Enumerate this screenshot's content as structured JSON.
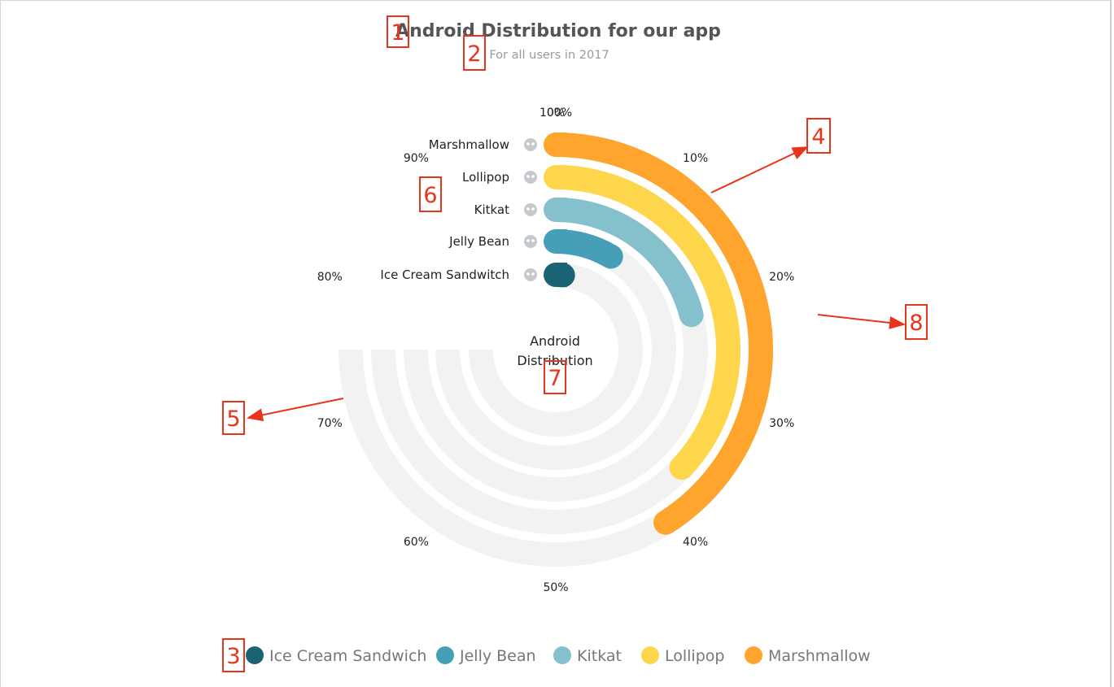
{
  "chart_data": {
    "type": "radial-bar",
    "title": "Android Distribution for our app",
    "subtitle": "For all users in 2017",
    "center_label": [
      "Android",
      "Distribution"
    ],
    "axis": {
      "range": [
        0,
        100
      ],
      "ticks": [
        "0%",
        "10%",
        "20%",
        "30%",
        "40%",
        "50%",
        "60%",
        "70%",
        "80%",
        "90%",
        "100%"
      ],
      "track_span": 75
    },
    "categories": [
      "Ice Cream Sandwitch",
      "Jelly Bean",
      "Kitkat",
      "Lollipop",
      "Marshmallow"
    ],
    "category_icons": [
      "bug-icon",
      "space-invader-icon",
      "unicorn-icon",
      "alien-icon",
      "alien-head-icon"
    ],
    "values": [
      1.5,
      8.5,
      21,
      37,
      41
    ],
    "colors": [
      "#1a6374",
      "#459fb6",
      "#84c1cc",
      "#fed64c",
      "#ffa42d"
    ],
    "track_color": "#f2f2f2",
    "legend_position": "bottom"
  },
  "legend": {
    "items": [
      {
        "label": "Ice Cream Sandwich",
        "color": "#1a6374"
      },
      {
        "label": "Jelly Bean",
        "color": "#459fb6"
      },
      {
        "label": "Kitkat",
        "color": "#84c1cc"
      },
      {
        "label": "Lollipop",
        "color": "#fed64c"
      },
      {
        "label": "Marshmallow",
        "color": "#ffa42d"
      }
    ]
  },
  "annotations": [
    "1",
    "2",
    "3",
    "4",
    "5",
    "6",
    "7",
    "8"
  ],
  "annotation_color": "#e8341b"
}
